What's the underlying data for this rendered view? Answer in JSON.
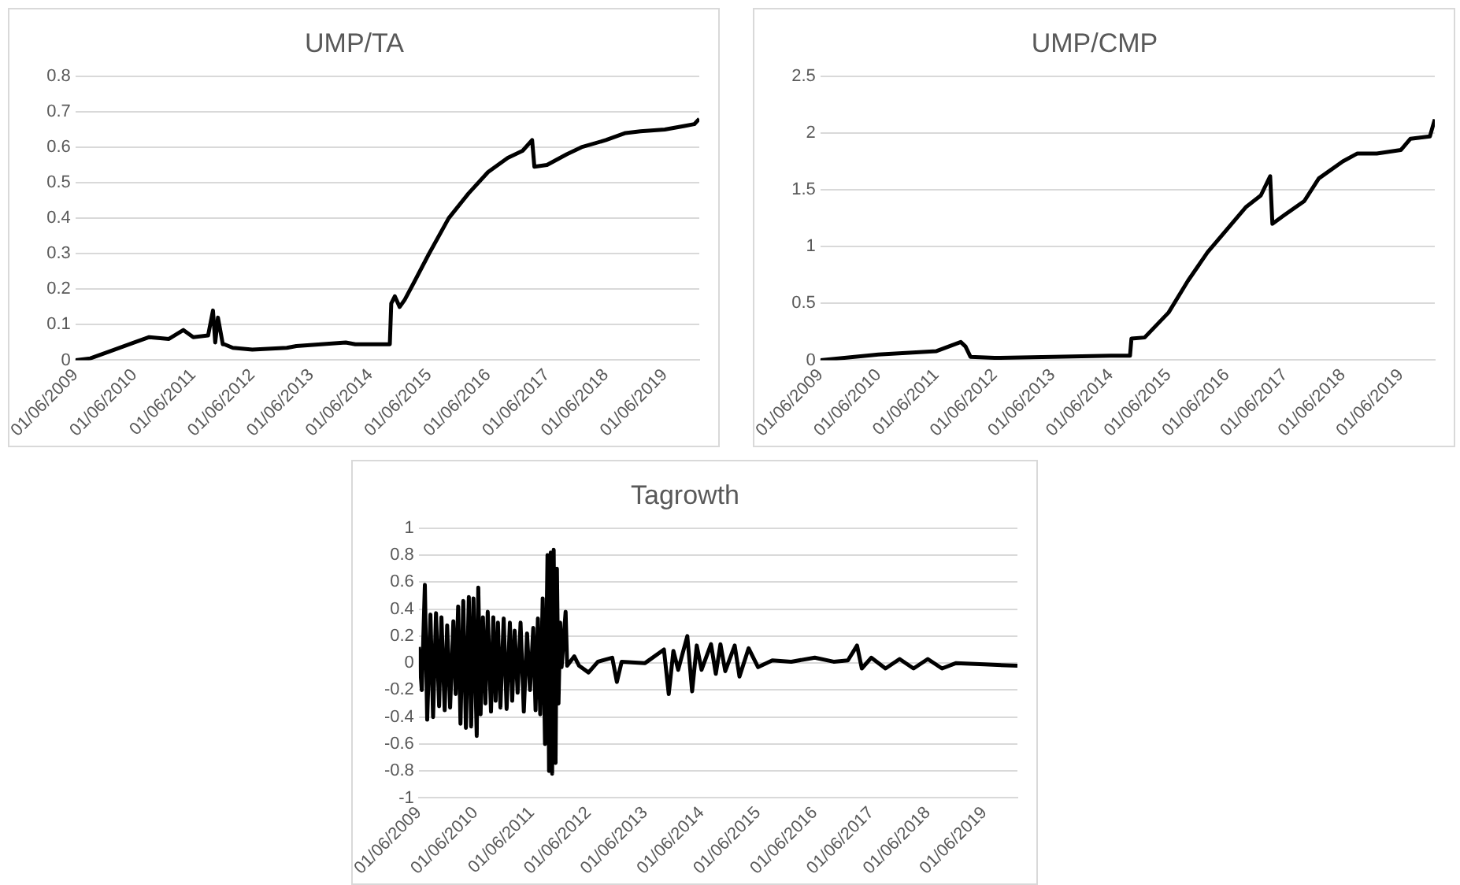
{
  "chart_data": [
    {
      "type": "line",
      "title": "UMP/TA",
      "color": "#000000",
      "marker": "none",
      "grid": "y",
      "legend": false,
      "x": [
        "2009-06-01",
        "2009-09-01",
        "2010-01-01",
        "2010-06-01",
        "2010-09-01",
        "2011-01-01",
        "2011-04-01",
        "2011-06-01",
        "2011-09-01",
        "2011-10-01",
        "2011-10-15",
        "2011-11-01",
        "2011-12-01",
        "2011-12-10",
        "2012-02-01",
        "2012-06-01",
        "2013-01-01",
        "2013-03-01",
        "2014-01-01",
        "2014-03-01",
        "2014-10-01",
        "2014-10-10",
        "2014-11-01",
        "2014-12-01",
        "2015-01-01",
        "2015-03-01",
        "2015-06-01",
        "2015-10-01",
        "2016-02-01",
        "2016-06-01",
        "2016-10-01",
        "2017-01-01",
        "2017-03-01",
        "2017-03-15",
        "2017-06-01",
        "2017-10-01",
        "2018-01-01",
        "2018-06-01",
        "2018-10-01",
        "2019-01-01",
        "2019-06-01",
        "2019-10-01",
        "2019-12-01",
        "2020-01-01"
      ],
      "values": [
        0,
        0.005,
        0.025,
        0.05,
        0.065,
        0.06,
        0.085,
        0.065,
        0.07,
        0.14,
        0.05,
        0.12,
        0.045,
        0.045,
        0.035,
        0.03,
        0.035,
        0.04,
        0.05,
        0.045,
        0.045,
        0.16,
        0.18,
        0.15,
        0.17,
        0.22,
        0.3,
        0.4,
        0.47,
        0.53,
        0.57,
        0.59,
        0.62,
        0.545,
        0.55,
        0.58,
        0.6,
        0.62,
        0.64,
        0.645,
        0.65,
        0.66,
        0.665,
        0.68
      ],
      "xlim": [
        "2009-06-01",
        "2020-01-01"
      ],
      "xticks": [
        {
          "value": "2009-06-01",
          "label": "01/06/2009"
        },
        {
          "value": "2010-06-01",
          "label": "01/06/2010"
        },
        {
          "value": "2011-06-01",
          "label": "01/06/2011"
        },
        {
          "value": "2012-06-01",
          "label": "01/06/2012"
        },
        {
          "value": "2013-06-01",
          "label": "01/06/2013"
        },
        {
          "value": "2014-06-01",
          "label": "01/06/2014"
        },
        {
          "value": "2015-06-01",
          "label": "01/06/2015"
        },
        {
          "value": "2016-06-01",
          "label": "01/06/2016"
        },
        {
          "value": "2017-06-01",
          "label": "01/06/2017"
        },
        {
          "value": "2018-06-01",
          "label": "01/06/2018"
        },
        {
          "value": "2019-06-01",
          "label": "01/06/2019"
        }
      ],
      "ylim": [
        0,
        0.8
      ],
      "yticks": [
        0,
        0.1,
        0.2,
        0.3,
        0.4,
        0.5,
        0.6,
        0.7,
        0.8
      ]
    },
    {
      "type": "line",
      "title": "UMP/CMP",
      "color": "#000000",
      "marker": "none",
      "grid": "y",
      "legend": false,
      "x": [
        "2009-06-01",
        "2010-06-01",
        "2011-06-01",
        "2011-11-01",
        "2011-12-01",
        "2012-01-01",
        "2012-06-01",
        "2013-06-01",
        "2014-06-01",
        "2014-10-01",
        "2014-10-10",
        "2015-01-01",
        "2015-06-01",
        "2015-10-01",
        "2016-02-01",
        "2016-06-01",
        "2016-10-01",
        "2017-01-01",
        "2017-03-01",
        "2017-03-15",
        "2017-06-01",
        "2017-10-01",
        "2018-01-01",
        "2018-06-01",
        "2018-09-01",
        "2019-01-01",
        "2019-06-01",
        "2019-08-01",
        "2019-12-01",
        "2020-01-01"
      ],
      "values": [
        0,
        0.05,
        0.08,
        0.16,
        0.12,
        0.03,
        0.02,
        0.03,
        0.04,
        0.04,
        0.19,
        0.2,
        0.42,
        0.7,
        0.95,
        1.15,
        1.35,
        1.45,
        1.62,
        1.2,
        1.28,
        1.4,
        1.6,
        1.75,
        1.82,
        1.82,
        1.85,
        1.95,
        1.97,
        2.12
      ],
      "xlim": [
        "2009-06-01",
        "2020-01-01"
      ],
      "xticks": [
        {
          "value": "2009-06-01",
          "label": "01/06/2009"
        },
        {
          "value": "2010-06-01",
          "label": "01/06/2010"
        },
        {
          "value": "2011-06-01",
          "label": "01/06/2011"
        },
        {
          "value": "2012-06-01",
          "label": "01/06/2012"
        },
        {
          "value": "2013-06-01",
          "label": "01/06/2013"
        },
        {
          "value": "2014-06-01",
          "label": "01/06/2014"
        },
        {
          "value": "2015-06-01",
          "label": "01/06/2015"
        },
        {
          "value": "2016-06-01",
          "label": "01/06/2016"
        },
        {
          "value": "2017-06-01",
          "label": "01/06/2017"
        },
        {
          "value": "2018-06-01",
          "label": "01/06/2018"
        },
        {
          "value": "2019-06-01",
          "label": "01/06/2019"
        }
      ],
      "ylim": [
        0,
        2.5
      ],
      "yticks": [
        0,
        0.5,
        1,
        1.5,
        2,
        2.5
      ]
    },
    {
      "type": "line",
      "title": "Tagrowth",
      "color": "#000000",
      "marker": "none",
      "grid": "y",
      "legend": false,
      "x": [
        "2009-06-01",
        "2009-06-20",
        "2009-07-10",
        "2009-07-25",
        "2009-08-15",
        "2009-09-01",
        "2009-09-20",
        "2009-10-10",
        "2009-10-25",
        "2009-11-15",
        "2009-12-01",
        "2009-12-20",
        "2010-01-10",
        "2010-01-25",
        "2010-02-10",
        "2010-02-25",
        "2010-03-15",
        "2010-04-01",
        "2010-04-20",
        "2010-05-05",
        "2010-05-20",
        "2010-06-10",
        "2010-06-20",
        "2010-07-05",
        "2010-07-20",
        "2010-08-05",
        "2010-08-20",
        "2010-09-10",
        "2010-09-25",
        "2010-10-10",
        "2010-10-25",
        "2010-11-10",
        "2010-12-01",
        "2010-12-20",
        "2011-01-10",
        "2011-01-25",
        "2011-02-10",
        "2011-03-01",
        "2011-03-20",
        "2011-04-10",
        "2011-05-01",
        "2011-05-20",
        "2011-06-10",
        "2011-06-25",
        "2011-07-10",
        "2011-07-25",
        "2011-08-10",
        "2011-08-25",
        "2011-09-10",
        "2011-09-20",
        "2011-10-01",
        "2011-10-10",
        "2011-10-20",
        "2011-11-01",
        "2011-11-10",
        "2011-11-20",
        "2011-12-01",
        "2011-12-10",
        "2012-01-05",
        "2012-01-15",
        "2012-03-01",
        "2012-04-01",
        "2012-06-01",
        "2012-08-01",
        "2012-11-01",
        "2012-12-01",
        "2013-01-01",
        "2013-06-01",
        "2013-10-01",
        "2013-11-01",
        "2013-12-01",
        "2014-01-01",
        "2014-03-01",
        "2014-04-01",
        "2014-05-01",
        "2014-06-01",
        "2014-08-01",
        "2014-09-01",
        "2014-10-01",
        "2014-11-01",
        "2015-01-01",
        "2015-02-01",
        "2015-04-01",
        "2015-06-01",
        "2015-09-01",
        "2016-01-01",
        "2016-06-01",
        "2016-10-01",
        "2017-01-01",
        "2017-03-01",
        "2017-04-01",
        "2017-06-01",
        "2017-09-01",
        "2017-12-01",
        "2018-03-01",
        "2018-06-01",
        "2018-09-01",
        "2018-12-01",
        "2019-06-01",
        "2020-01-01"
      ],
      "values": [
        0.12,
        -0.2,
        0.58,
        -0.42,
        0.36,
        -0.4,
        0.37,
        -0.32,
        0.34,
        -0.35,
        0.28,
        -0.33,
        0.31,
        -0.23,
        0.42,
        -0.45,
        0.46,
        -0.48,
        0.49,
        -0.47,
        0.48,
        -0.54,
        0.56,
        -0.38,
        0.34,
        -0.3,
        0.38,
        -0.36,
        0.34,
        -0.28,
        0.3,
        -0.33,
        0.33,
        -0.34,
        0.3,
        -0.28,
        0.24,
        -0.22,
        0.3,
        -0.36,
        0.22,
        -0.2,
        0.26,
        -0.35,
        0.33,
        -0.38,
        0.48,
        -0.6,
        0.8,
        -0.8,
        0.82,
        -0.82,
        0.84,
        -0.74,
        0.7,
        -0.3,
        0.3,
        -0.03,
        0.38,
        -0.02,
        0.05,
        -0.02,
        -0.07,
        0.01,
        0.04,
        -0.14,
        0.01,
        0,
        0.1,
        -0.23,
        0.09,
        -0.05,
        0.2,
        -0.21,
        0.13,
        -0.05,
        0.14,
        -0.08,
        0.14,
        -0.06,
        0.13,
        -0.1,
        0.11,
        -0.03,
        0.02,
        0.01,
        0.04,
        0.01,
        0.02,
        0.13,
        -0.04,
        0.04,
        -0.04,
        0.03,
        -0.04,
        0.03,
        -0.04,
        0,
        -0.01,
        -0.02
      ],
      "xlim": [
        "2009-06-01",
        "2020-01-01"
      ],
      "xticks": [
        {
          "value": "2009-06-01",
          "label": "01/06/2009"
        },
        {
          "value": "2010-06-01",
          "label": "01/06/2010"
        },
        {
          "value": "2011-06-01",
          "label": "01/06/2011"
        },
        {
          "value": "2012-06-01",
          "label": "01/06/2012"
        },
        {
          "value": "2013-06-01",
          "label": "01/06/2013"
        },
        {
          "value": "2014-06-01",
          "label": "01/06/2014"
        },
        {
          "value": "2015-06-01",
          "label": "01/06/2015"
        },
        {
          "value": "2016-06-01",
          "label": "01/06/2016"
        },
        {
          "value": "2017-06-01",
          "label": "01/06/2017"
        },
        {
          "value": "2018-06-01",
          "label": "01/06/2018"
        },
        {
          "value": "2019-06-01",
          "label": "01/06/2019"
        }
      ],
      "ylim": [
        -1,
        1
      ],
      "yticks": [
        -1,
        -0.8,
        -0.6,
        -0.4,
        -0.2,
        0,
        0.2,
        0.4,
        0.6,
        0.8,
        1
      ]
    }
  ]
}
